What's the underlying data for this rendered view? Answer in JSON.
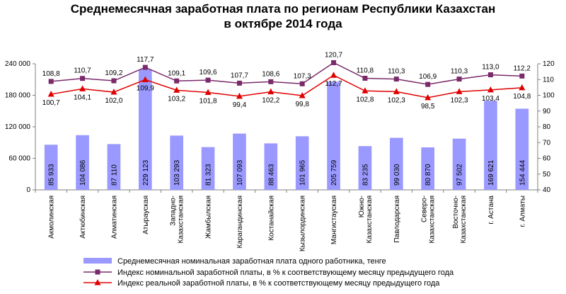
{
  "chart_data": {
    "type": "bar+line",
    "title_line1": "Среднемесячная заработная плата по регионам Республики Казахстан",
    "title_line2": "в октябре 2014 года",
    "categories": [
      [
        "Акмолинская"
      ],
      [
        "Актюбинская"
      ],
      [
        "Алматинская"
      ],
      [
        "Атырауская"
      ],
      [
        "Западно-",
        "Казахстанская"
      ],
      [
        "Жамбылская"
      ],
      [
        "Карагандинская"
      ],
      [
        "Костанайская"
      ],
      [
        "Кызылординская"
      ],
      [
        "Мангистауская"
      ],
      [
        "Южно-",
        "Казахстанская"
      ],
      [
        "Павлодарская"
      ],
      [
        "Северо-",
        "Казахстанская"
      ],
      [
        "Восточно-",
        "Казахстанская"
      ],
      [
        "г. Астана"
      ],
      [
        "г. Алматы"
      ]
    ],
    "bars": {
      "name": "Среднемесячная номинальная заработная плата одного работника, тенге",
      "color": "#9999ff",
      "values": [
        85933,
        104086,
        87110,
        229123,
        103293,
        81323,
        107093,
        88463,
        101965,
        205759,
        83235,
        99030,
        80870,
        97502,
        169621,
        154444
      ],
      "labels": [
        "85 933",
        "104 086",
        "87 110",
        "229 123",
        "103 293",
        "81 323",
        "107 093",
        "88 463",
        "101 965",
        "205 759",
        "83 235",
        "99 030",
        "80 870",
        "97 502",
        "169 621",
        "154 444"
      ]
    },
    "series": [
      {
        "name": "Индекс номинальной заработной платы, в % к соответствующему месяцу предыдущего года",
        "color": "#7a2a6a",
        "marker": "square",
        "values": [
          108.8,
          110.7,
          109.2,
          117.7,
          109.1,
          109.6,
          107.7,
          108.6,
          107.3,
          120.7,
          110.8,
          110.3,
          106.9,
          110.3,
          113.0,
          112.2
        ],
        "labels": [
          "108,8",
          "110,7",
          "109,2",
          "117,7",
          "109,1",
          "109,6",
          "107,7",
          "108,6",
          "107,3",
          "120,7",
          "110,8",
          "110,3",
          "106,9",
          "110,3",
          "113,0",
          "112,2"
        ]
      },
      {
        "name": "Индекс реальной заработной платы, в % к соответствующему месяцу предыдущего года",
        "color": "#e00000",
        "marker": "triangle",
        "values": [
          100.7,
          104.1,
          102.0,
          109.9,
          103.2,
          101.8,
          99.4,
          102.2,
          99.8,
          112.7,
          102.8,
          102.3,
          98.5,
          102.3,
          103.4,
          104.8
        ],
        "labels": [
          "100,7",
          "104,1",
          "102,0",
          "109,9",
          "103,2",
          "101,8",
          "99,4",
          "102,2",
          "99,8",
          "112,7",
          "102,8",
          "102,3",
          "98,5",
          "102,3",
          "103,4",
          "104,8"
        ]
      }
    ],
    "y_left": {
      "min": 0,
      "max": 240000,
      "ticks": [
        "0",
        "60 000",
        "120 000",
        "180 000",
        "240 000"
      ]
    },
    "y_right": {
      "min": 40,
      "max": 120,
      "ticks": [
        "40",
        "50",
        "60",
        "70",
        "80",
        "90",
        "100",
        "110",
        "120"
      ]
    }
  }
}
